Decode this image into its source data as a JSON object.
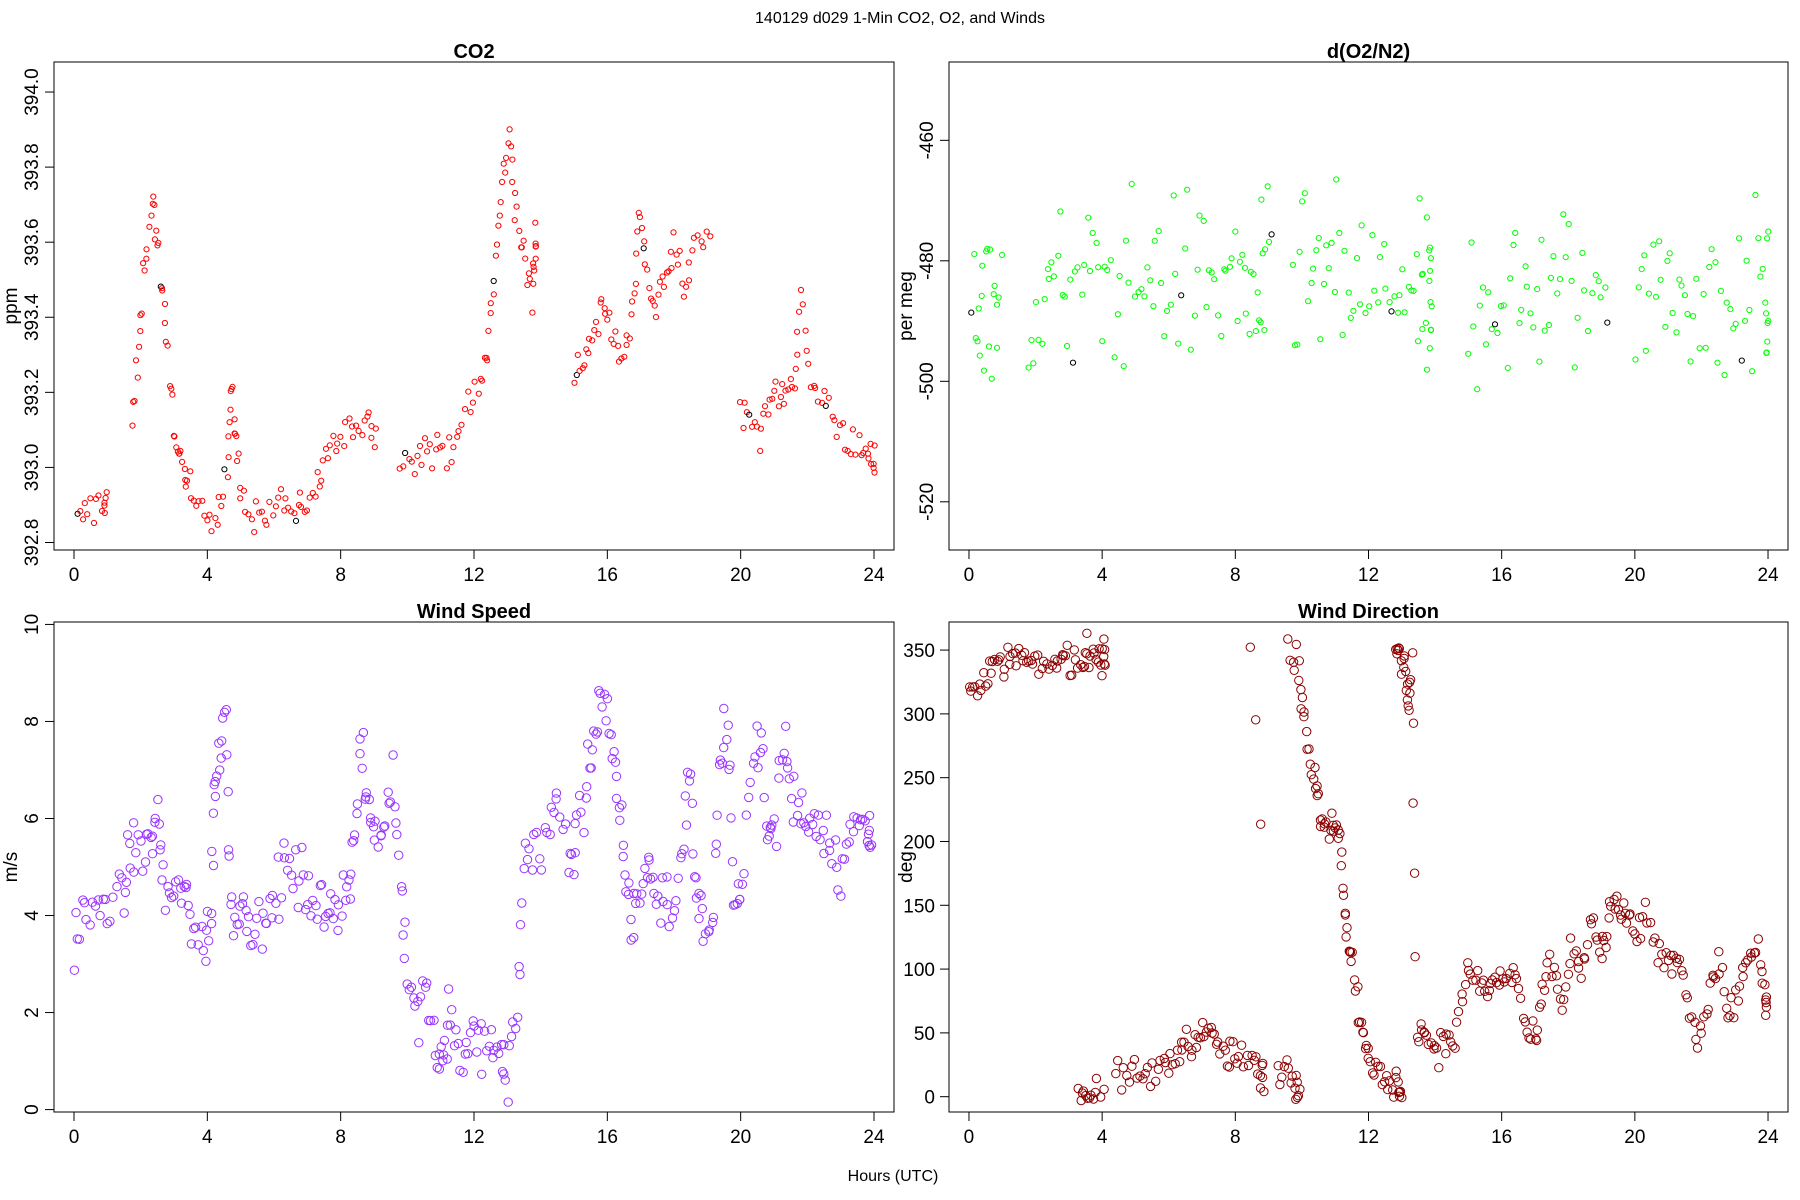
{
  "figure": {
    "title": "140129   d029   1-Min CO2, O2, and Winds",
    "xlabel": "Hours (UTC)"
  },
  "chart_data": [
    {
      "id": "co2",
      "type": "scatter",
      "title": "CO2",
      "xlabel": "",
      "ylabel": "ppm",
      "color": "#ff0000",
      "alt_color": "#000000",
      "marker_size": 2.6,
      "xlim": [
        -0.6,
        24.6
      ],
      "ylim": [
        392.78,
        394.08
      ],
      "xticks": [
        0,
        4,
        8,
        12,
        16,
        20,
        24
      ],
      "yticks": [
        392.8,
        393.0,
        393.2,
        393.4,
        393.6,
        393.8,
        394.0
      ],
      "ytick_labels": [
        "392.8",
        "393.0",
        "393.2",
        "393.4",
        "393.6",
        "393.8",
        "394.0"
      ],
      "ytick_rotate": true,
      "noise": 0.025,
      "per_anchor": 5,
      "gaps": [
        [
          1.0,
          1.7
        ],
        [
          9.1,
          9.75
        ],
        [
          13.9,
          14.9
        ],
        [
          19.2,
          19.9
        ]
      ],
      "anchors": [
        [
          0.1,
          392.85
        ],
        [
          0.5,
          392.89
        ],
        [
          0.9,
          392.91
        ],
        [
          1.0,
          392.93
        ],
        [
          1.75,
          393.12
        ],
        [
          1.95,
          393.3
        ],
        [
          2.1,
          393.55
        ],
        [
          2.35,
          393.72
        ],
        [
          2.5,
          393.6
        ],
        [
          2.7,
          393.4
        ],
        [
          2.9,
          393.2
        ],
        [
          3.1,
          393.05
        ],
        [
          3.3,
          392.98
        ],
        [
          3.5,
          392.92
        ],
        [
          3.9,
          392.9
        ],
        [
          4.3,
          392.88
        ],
        [
          4.6,
          393.0
        ],
        [
          4.7,
          393.2
        ],
        [
          4.85,
          393.1
        ],
        [
          5.0,
          392.92
        ],
        [
          5.4,
          392.88
        ],
        [
          5.8,
          392.86
        ],
        [
          6.2,
          392.92
        ],
        [
          6.6,
          392.88
        ],
        [
          6.9,
          392.87
        ],
        [
          7.3,
          392.95
        ],
        [
          7.6,
          393.05
        ],
        [
          8.0,
          393.07
        ],
        [
          8.4,
          393.1
        ],
        [
          8.8,
          393.15
        ],
        [
          9.05,
          393.08
        ],
        [
          9.8,
          393.05
        ],
        [
          10.2,
          393.04
        ],
        [
          10.6,
          393.05
        ],
        [
          11.0,
          393.03
        ],
        [
          11.4,
          393.08
        ],
        [
          11.8,
          393.15
        ],
        [
          12.2,
          393.22
        ],
        [
          12.45,
          393.35
        ],
        [
          12.65,
          393.55
        ],
        [
          12.85,
          393.75
        ],
        [
          13.05,
          393.9
        ],
        [
          13.25,
          393.7
        ],
        [
          13.5,
          393.55
        ],
        [
          13.75,
          393.45
        ],
        [
          13.85,
          393.6
        ],
        [
          15.0,
          393.25
        ],
        [
          15.3,
          393.3
        ],
        [
          15.6,
          393.35
        ],
        [
          15.9,
          393.45
        ],
        [
          16.2,
          393.35
        ],
        [
          16.5,
          393.3
        ],
        [
          16.75,
          393.4
        ],
        [
          16.95,
          393.7
        ],
        [
          17.15,
          393.55
        ],
        [
          17.4,
          393.4
        ],
        [
          17.7,
          393.5
        ],
        [
          18.0,
          393.6
        ],
        [
          18.3,
          393.45
        ],
        [
          18.6,
          393.62
        ],
        [
          19.1,
          393.6
        ],
        [
          20.0,
          393.18
        ],
        [
          20.35,
          393.12
        ],
        [
          20.7,
          393.1
        ],
        [
          21.0,
          393.2
        ],
        [
          21.3,
          393.2
        ],
        [
          21.6,
          393.25
        ],
        [
          21.8,
          393.45
        ],
        [
          22.1,
          393.22
        ],
        [
          22.5,
          393.18
        ],
        [
          22.9,
          393.12
        ],
        [
          23.3,
          393.07
        ],
        [
          23.7,
          393.02
        ],
        [
          23.95,
          393.02
        ]
      ]
    },
    {
      "id": "o2",
      "type": "scatter",
      "title": "d(O2/N2)",
      "xlabel": "",
      "ylabel": "per meg",
      "color": "#00ff00",
      "alt_color": "#000000",
      "marker_size": 2.6,
      "xlim": [
        -0.6,
        24.6
      ],
      "ylim": [
        -528,
        -447
      ],
      "xticks": [
        0,
        4,
        8,
        12,
        16,
        20,
        24
      ],
      "yticks": [
        -520,
        -500,
        -480,
        -460
      ],
      "ytick_labels": [
        "-520",
        "-500",
        "-480",
        "-460"
      ],
      "ytick_rotate": true,
      "noise": 7,
      "per_anchor": 9,
      "gaps": [
        [
          1.0,
          1.7
        ],
        [
          9.1,
          9.7
        ],
        [
          13.9,
          14.9
        ],
        [
          19.2,
          19.9
        ]
      ],
      "anchors": [
        [
          0.1,
          -486
        ],
        [
          0.5,
          -484
        ],
        [
          0.9,
          -485
        ],
        [
          1.8,
          -487
        ],
        [
          2.5,
          -486
        ],
        [
          3.2,
          -485
        ],
        [
          4.0,
          -484
        ],
        [
          4.8,
          -483
        ],
        [
          5.6,
          -482
        ],
        [
          6.4,
          -483
        ],
        [
          7.2,
          -483
        ],
        [
          8.0,
          -484
        ],
        [
          8.6,
          -485
        ],
        [
          9.0,
          -484
        ],
        [
          9.8,
          -484
        ],
        [
          10.5,
          -483
        ],
        [
          11.2,
          -484
        ],
        [
          12.0,
          -485
        ],
        [
          12.8,
          -485
        ],
        [
          13.5,
          -487
        ],
        [
          13.85,
          -488
        ],
        [
          15.0,
          -487
        ],
        [
          15.8,
          -486
        ],
        [
          16.6,
          -487
        ],
        [
          17.4,
          -485
        ],
        [
          18.2,
          -486
        ],
        [
          19.1,
          -485
        ],
        [
          20.0,
          -484
        ],
        [
          20.8,
          -485
        ],
        [
          21.6,
          -486
        ],
        [
          22.4,
          -487
        ],
        [
          23.2,
          -486
        ],
        [
          23.95,
          -485
        ]
      ]
    },
    {
      "id": "wind-speed",
      "type": "scatter",
      "title": "Wind Speed",
      "xlabel": "",
      "ylabel": "m/s",
      "color": "#9933ff",
      "marker_size": 4.2,
      "xlim": [
        -0.6,
        24.6
      ],
      "ylim": [
        -0.05,
        10.05
      ],
      "xticks": [
        0,
        4,
        8,
        12,
        16,
        20,
        24
      ],
      "yticks": [
        0,
        2,
        4,
        6,
        8,
        10
      ],
      "ytick_labels": [
        "0",
        "2",
        "4",
        "6",
        "8",
        "10"
      ],
      "ytick_rotate": true,
      "noise": 0.3,
      "per_anchor": 5,
      "gaps": [],
      "anchors": [
        [
          0.0,
          3.5
        ],
        [
          0.3,
          4.0
        ],
        [
          0.7,
          4.2
        ],
        [
          1.1,
          4.3
        ],
        [
          1.5,
          4.4
        ],
        [
          1.7,
          5.5
        ],
        [
          2.0,
          5.2
        ],
        [
          2.3,
          5.5
        ],
        [
          2.5,
          6.1
        ],
        [
          2.7,
          4.5
        ],
        [
          3.0,
          4.2
        ],
        [
          3.3,
          4.8
        ],
        [
          3.5,
          3.6
        ],
        [
          3.9,
          3.6
        ],
        [
          4.1,
          3.9
        ],
        [
          4.2,
          6.5
        ],
        [
          4.35,
          7.5
        ],
        [
          4.55,
          8.2
        ],
        [
          4.7,
          4.3
        ],
        [
          4.95,
          4.0
        ],
        [
          5.2,
          4.2
        ],
        [
          5.5,
          3.5
        ],
        [
          5.8,
          4.0
        ],
        [
          6.1,
          4.6
        ],
        [
          6.4,
          5.0
        ],
        [
          6.7,
          4.7
        ],
        [
          7.0,
          4.6
        ],
        [
          7.3,
          4.3
        ],
        [
          7.6,
          4.0
        ],
        [
          7.9,
          4.3
        ],
        [
          8.2,
          4.7
        ],
        [
          8.4,
          5.2
        ],
        [
          8.6,
          7.5
        ],
        [
          8.8,
          6.2
        ],
        [
          9.0,
          5.8
        ],
        [
          9.3,
          5.6
        ],
        [
          9.55,
          7.2
        ],
        [
          9.8,
          4.8
        ],
        [
          10.0,
          3.0
        ],
        [
          10.3,
          1.8
        ],
        [
          10.6,
          2.5
        ],
        [
          10.9,
          1.2
        ],
        [
          11.1,
          1.0
        ],
        [
          11.3,
          2.0
        ],
        [
          11.6,
          1.0
        ],
        [
          11.9,
          1.4
        ],
        [
          12.2,
          1.3
        ],
        [
          12.5,
          1.4
        ],
        [
          12.8,
          1.0
        ],
        [
          13.0,
          0.7
        ],
        [
          13.3,
          2.0
        ],
        [
          13.5,
          5.0
        ],
        [
          13.8,
          5.3
        ],
        [
          14.2,
          5.8
        ],
        [
          14.5,
          6.3
        ],
        [
          14.9,
          5.2
        ],
        [
          15.1,
          5.6
        ],
        [
          15.4,
          6.8
        ],
        [
          15.6,
          7.8
        ],
        [
          15.85,
          8.6
        ],
        [
          16.1,
          7.5
        ],
        [
          16.3,
          6.5
        ],
        [
          16.5,
          5.3
        ],
        [
          16.7,
          3.8
        ],
        [
          16.9,
          4.3
        ],
        [
          17.2,
          5.0
        ],
        [
          17.4,
          4.5
        ],
        [
          17.7,
          4.4
        ],
        [
          18.0,
          4.0
        ],
        [
          18.3,
          6.0
        ],
        [
          18.5,
          6.8
        ],
        [
          18.7,
          4.0
        ],
        [
          18.9,
          3.8
        ],
        [
          19.2,
          4.0
        ],
        [
          19.4,
          7.5
        ],
        [
          19.6,
          8.0
        ],
        [
          19.8,
          4.0
        ],
        [
          20.0,
          4.5
        ],
        [
          20.3,
          7.0
        ],
        [
          20.6,
          7.8
        ],
        [
          20.8,
          5.5
        ],
        [
          21.0,
          5.8
        ],
        [
          21.3,
          7.8
        ],
        [
          21.5,
          6.5
        ],
        [
          21.8,
          6.2
        ],
        [
          22.1,
          5.8
        ],
        [
          22.4,
          6.0
        ],
        [
          22.7,
          5.5
        ],
        [
          23.0,
          5.0
        ],
        [
          23.3,
          5.6
        ],
        [
          23.6,
          6.0
        ],
        [
          23.9,
          5.6
        ]
      ]
    },
    {
      "id": "wind-direction",
      "type": "scatter",
      "title": "Wind Direction",
      "xlabel": "",
      "ylabel": "deg",
      "color": "#8b0000",
      "marker_size": 4.2,
      "xlim": [
        -0.6,
        24.6
      ],
      "ylim": [
        -12,
        372
      ],
      "xticks": [
        0,
        4,
        8,
        12,
        16,
        20,
        24
      ],
      "yticks": [
        0,
        50,
        100,
        150,
        200,
        250,
        300,
        350
      ],
      "ytick_labels": [
        "0",
        "50",
        "100",
        "150",
        "200",
        "250",
        "300",
        "350"
      ],
      "ytick_rotate": false,
      "noise": 6,
      "per_anchor": 5,
      "gaps": [
        [
          4.1,
          4.35
        ],
        [
          8.9,
          9.25
        ]
      ],
      "anchors": [
        [
          0.0,
          330
        ],
        [
          0.3,
          322
        ],
        [
          0.6,
          330
        ],
        [
          0.9,
          338
        ],
        [
          1.2,
          342
        ],
        [
          1.5,
          345
        ],
        [
          1.8,
          338
        ],
        [
          2.1,
          336
        ],
        [
          2.5,
          340
        ],
        [
          2.8,
          341
        ],
        [
          3.1,
          343
        ],
        [
          3.4,
          340
        ],
        [
          3.6,
          352
        ],
        [
          3.9,
          345
        ],
        [
          4.05,
          344
        ],
        [
          3.3,
          5
        ],
        [
          3.55,
          3
        ],
        [
          3.85,
          6
        ],
        [
          4.4,
          14
        ],
        [
          4.8,
          16
        ],
        [
          5.2,
          18
        ],
        [
          5.6,
          18
        ],
        [
          6.0,
          25
        ],
        [
          6.3,
          38
        ],
        [
          6.6,
          44
        ],
        [
          6.9,
          48
        ],
        [
          7.2,
          50
        ],
        [
          7.5,
          38
        ],
        [
          7.8,
          32
        ],
        [
          8.1,
          30
        ],
        [
          8.5,
          28
        ],
        [
          8.8,
          15
        ],
        [
          8.45,
          352
        ],
        [
          9.3,
          20
        ],
        [
          9.6,
          22
        ],
        [
          9.9,
          12
        ],
        [
          9.6,
          352
        ],
        [
          9.9,
          340
        ],
        [
          10.05,
          300
        ],
        [
          10.25,
          265
        ],
        [
          10.45,
          240
        ],
        [
          10.6,
          210
        ],
        [
          10.85,
          210
        ],
        [
          11.05,
          220
        ],
        [
          11.2,
          185
        ],
        [
          11.35,
          130
        ],
        [
          11.5,
          110
        ],
        [
          11.7,
          70
        ],
        [
          11.9,
          45
        ],
        [
          12.1,
          28
        ],
        [
          12.4,
          12
        ],
        [
          12.7,
          8
        ],
        [
          12.95,
          8
        ],
        [
          12.8,
          352
        ],
        [
          12.95,
          345
        ],
        [
          13.1,
          335
        ],
        [
          13.2,
          300
        ],
        [
          13.3,
          345
        ],
        [
          13.45,
          60
        ],
        [
          13.7,
          48
        ],
        [
          14.0,
          40
        ],
        [
          14.3,
          40
        ],
        [
          14.6,
          45
        ],
        [
          14.9,
          90
        ],
        [
          15.2,
          98
        ],
        [
          15.5,
          82
        ],
        [
          15.8,
          88
        ],
        [
          16.1,
          90
        ],
        [
          16.4,
          100
        ],
        [
          16.7,
          55
        ],
        [
          17.0,
          40
        ],
        [
          17.2,
          80
        ],
        [
          17.5,
          110
        ],
        [
          17.8,
          70
        ],
        [
          18.1,
          120
        ],
        [
          18.4,
          95
        ],
        [
          18.7,
          135
        ],
        [
          19.0,
          110
        ],
        [
          19.2,
          140
        ],
        [
          19.45,
          152
        ],
        [
          19.7,
          145
        ],
        [
          20.0,
          120
        ],
        [
          20.3,
          142
        ],
        [
          20.7,
          115
        ],
        [
          21.0,
          105
        ],
        [
          21.3,
          110
        ],
        [
          21.6,
          80
        ],
        [
          21.9,
          40
        ],
        [
          22.2,
          75
        ],
        [
          22.5,
          110
        ],
        [
          22.8,
          60
        ],
        [
          23.1,
          85
        ],
        [
          23.4,
          100
        ],
        [
          23.7,
          118
        ],
        [
          23.95,
          70
        ]
      ]
    }
  ]
}
